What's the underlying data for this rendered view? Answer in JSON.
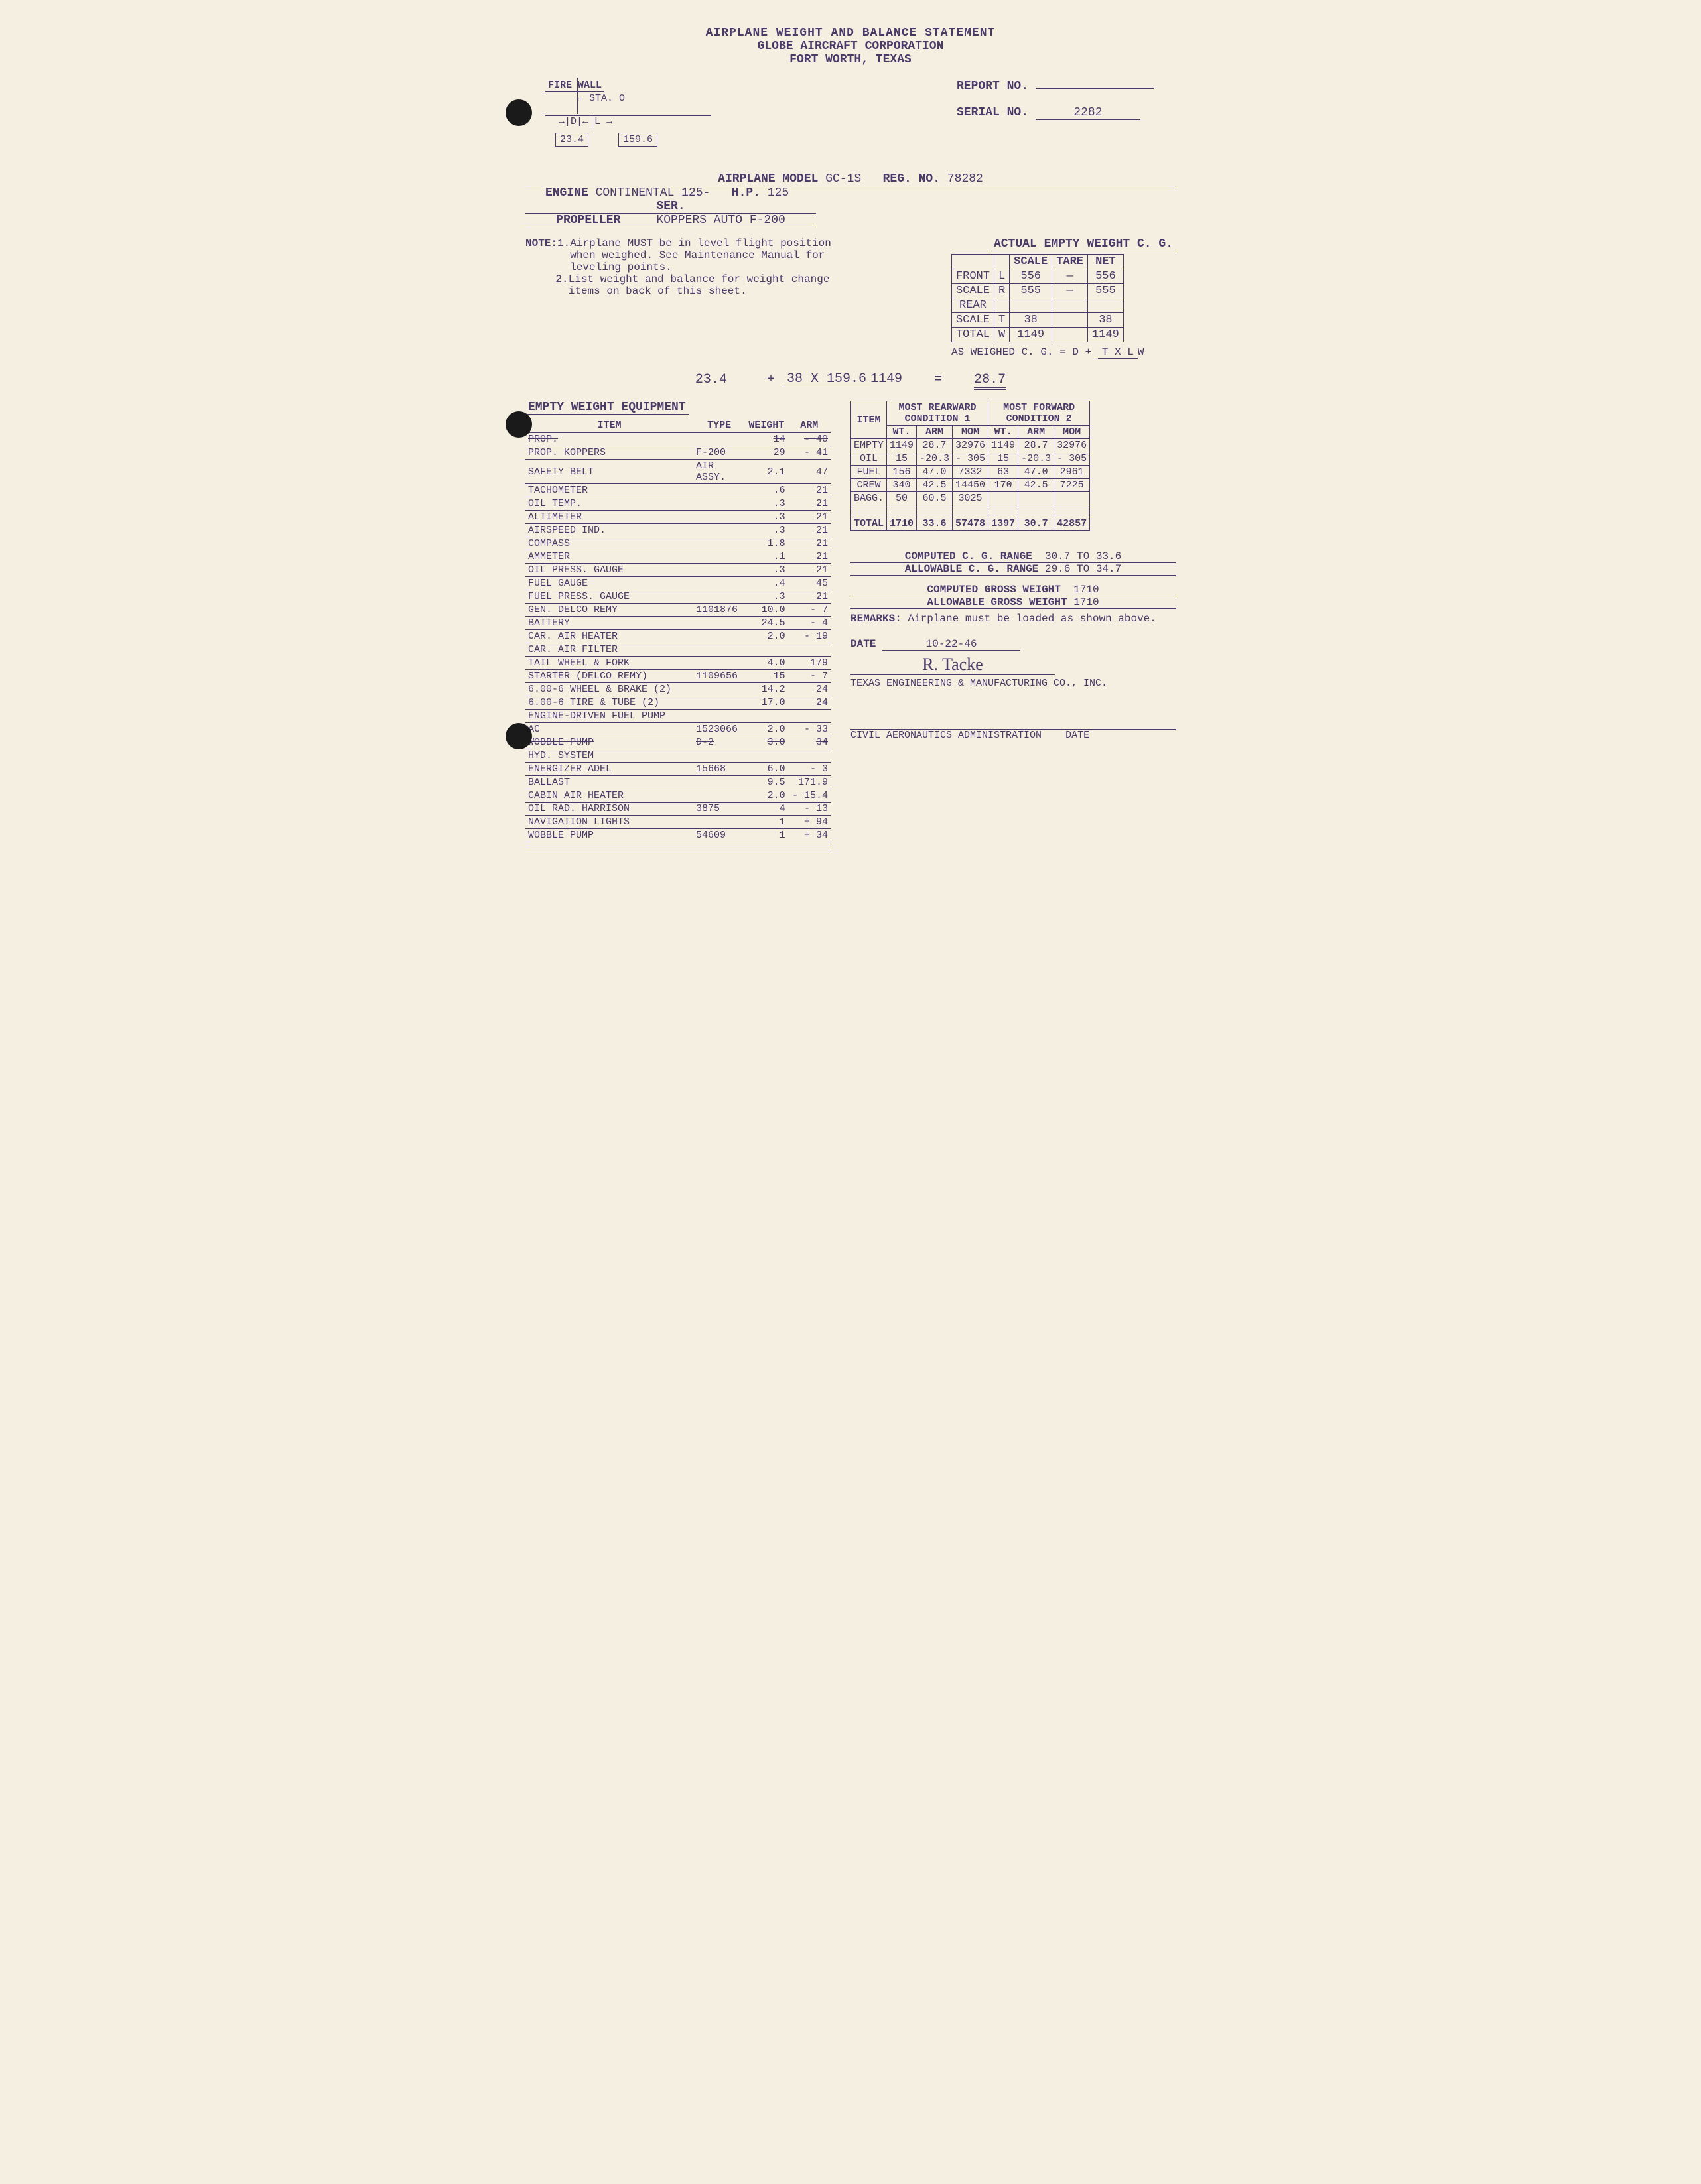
{
  "header": {
    "title": "AIRPLANE WEIGHT AND BALANCE STATEMENT",
    "company": "GLOBE AIRCRAFT CORPORATION",
    "location": "FORT WORTH, TEXAS"
  },
  "topright": {
    "report_lbl": "Report No.",
    "report_val": "",
    "serial_lbl": "Serial No.",
    "serial_val": "2282"
  },
  "diagram": {
    "firewall": "Fire Wall",
    "sta": "STA. O",
    "d": "D",
    "l": "L",
    "d_val": "23.4",
    "l_val": "159.6"
  },
  "specs": {
    "model_lbl": "Airplane Model",
    "model": "GC-1S",
    "reg_lbl": "Reg. No.",
    "reg": "78282",
    "engine_lbl": "Engine",
    "engine": "Continental 125-",
    "hp_lbl": "H.P.",
    "hp": "125",
    "ser_lbl": "Ser.",
    "prop_lbl": "Propeller",
    "prop": "Koppers Auto F-200"
  },
  "notes": {
    "hdr": "NOTE:",
    "n1": "1.",
    "n1t": "Airplane MUST be in level flight position when weighed. See Maintenance Manual for leveling points.",
    "n2": "2.",
    "n2t": "List weight and balance for weight change items on back of this sheet."
  },
  "cg_table": {
    "title": "Actual Empty Weight C. G.",
    "cols": [
      "",
      "",
      "Scale",
      "Tare",
      "Net"
    ],
    "rows": [
      [
        "Front",
        "L",
        "556",
        "—",
        "556"
      ],
      [
        "Scale",
        "R",
        "555",
        "—",
        "555"
      ],
      [
        "Rear",
        "",
        "",
        "",
        ""
      ],
      [
        "Scale",
        "T",
        "38",
        "",
        "38"
      ],
      [
        "Total",
        "W",
        "1149",
        "",
        "1149"
      ]
    ],
    "formula_lbl": "As weighed C. G. = D +",
    "formula_frac_top": "T x L",
    "formula_frac_bot": "W",
    "calc_d": "23.4",
    "calc_plus": "+",
    "calc_top": "38 x 159.6",
    "calc_bot": "1149",
    "calc_eq": "=",
    "calc_res": "28.7"
  },
  "equip": {
    "title": "Empty Weight Equipment",
    "cols": [
      "Item",
      "Type",
      "Weight",
      "Arm"
    ],
    "rows": [
      {
        "item": "Prop.",
        "type": "",
        "wt": "14",
        "arm": "- 40",
        "strike": true
      },
      {
        "item": "Prop. Koppers",
        "type": "F-200",
        "wt": "29",
        "arm": "- 41"
      },
      {
        "item": "Safety Belt",
        "type": "Air Assy.",
        "wt": "2.1",
        "arm": "47"
      },
      {
        "item": "Tachometer",
        "type": "",
        "wt": ".6",
        "arm": "21"
      },
      {
        "item": "Oil Temp.",
        "type": "",
        "wt": ".3",
        "arm": "21"
      },
      {
        "item": "Altimeter",
        "type": "",
        "wt": ".3",
        "arm": "21"
      },
      {
        "item": "Airspeed Ind.",
        "type": "",
        "wt": ".3",
        "arm": "21"
      },
      {
        "item": "Compass",
        "type": "",
        "wt": "1.8",
        "arm": "21"
      },
      {
        "item": "Ammeter",
        "type": "",
        "wt": ".1",
        "arm": "21"
      },
      {
        "item": "Oil Press. Gauge",
        "type": "",
        "wt": ".3",
        "arm": "21"
      },
      {
        "item": "Fuel Gauge",
        "type": "",
        "wt": ".4",
        "arm": "45"
      },
      {
        "item": "Fuel Press. Gauge",
        "type": "",
        "wt": ".3",
        "arm": "21"
      },
      {
        "item": "Gen. Delco Remy",
        "type": "1101876",
        "wt": "10.0",
        "arm": "- 7"
      },
      {
        "item": "Battery",
        "type": "",
        "wt": "24.5",
        "arm": "- 4"
      },
      {
        "item": "Car. Air Heater",
        "type": "",
        "wt": "2.0",
        "arm": "- 19"
      },
      {
        "item": "Car. Air Filter",
        "type": "",
        "wt": "",
        "arm": ""
      },
      {
        "item": "Tail Wheel & Fork",
        "type": "",
        "wt": "4.0",
        "arm": "179"
      },
      {
        "item": "Starter (Delco Remy)",
        "type": "1109656",
        "wt": "15",
        "arm": "- 7"
      },
      {
        "item": "6.00-6 Wheel & Brake (2)",
        "type": "",
        "wt": "14.2",
        "arm": "24"
      },
      {
        "item": "6.00-6 Tire & Tube (2)",
        "type": "",
        "wt": "17.0",
        "arm": "24"
      },
      {
        "item": "Engine-Driven Fuel Pump",
        "type": "",
        "wt": "",
        "arm": ""
      },
      {
        "item": "AC",
        "type": "1523066",
        "wt": "2.0",
        "arm": "- 33"
      },
      {
        "item": "Wobble Pump",
        "type": "D-2",
        "wt": "3.0",
        "arm": "34",
        "strike": true
      },
      {
        "item": "Hyd. System",
        "type": "",
        "wt": "",
        "arm": ""
      },
      {
        "item": "Energizer Adel",
        "type": "15668",
        "wt": "6.0",
        "arm": "- 3"
      },
      {
        "item": "Ballast",
        "type": "",
        "wt": "9.5",
        "arm": "171.9"
      },
      {
        "item": "Cabin Air Heater",
        "type": "",
        "wt": "2.0",
        "arm": "- 15.4"
      },
      {
        "item": "Oil Rad. Harrison",
        "type": "3875",
        "wt": "4",
        "arm": "- 13"
      },
      {
        "item": "Navigation Lights",
        "type": "",
        "wt": "1",
        "arm": "+ 94"
      },
      {
        "item": "Wobble Pump",
        "type": "54609",
        "wt": "1",
        "arm": "+ 34"
      },
      {
        "item": "",
        "type": "",
        "wt": "",
        "arm": ""
      },
      {
        "item": "",
        "type": "",
        "wt": "",
        "arm": ""
      },
      {
        "item": "",
        "type": "",
        "wt": "",
        "arm": ""
      },
      {
        "item": "",
        "type": "",
        "wt": "",
        "arm": ""
      },
      {
        "item": "",
        "type": "",
        "wt": "",
        "arm": ""
      }
    ]
  },
  "conditions": {
    "c1_title": "Most Rearward",
    "c1_sub": "Condition 1",
    "c2_title": "Most Forward",
    "c2_sub": "Condition 2",
    "cols": [
      "Item",
      "Wt.",
      "Arm",
      "Mom",
      "Wt.",
      "Arm",
      "Mom"
    ],
    "rows": [
      [
        "Empty",
        "1149",
        "28.7",
        "32976",
        "1149",
        "28.7",
        "32976"
      ],
      [
        "Oil",
        "15",
        "-20.3",
        "- 305",
        "15",
        "-20.3",
        "- 305"
      ],
      [
        "Fuel",
        "156",
        "47.0",
        "7332",
        "63",
        "47.0",
        "2961"
      ],
      [
        "Crew",
        "340",
        "42.5",
        "14450",
        "170",
        "42.5",
        "7225"
      ],
      [
        "Bagg.",
        "50",
        "60.5",
        "3025",
        "",
        "",
        ""
      ],
      [
        "",
        "",
        "",
        "",
        "",
        "",
        ""
      ],
      [
        "",
        "",
        "",
        "",
        "",
        "",
        ""
      ],
      [
        "",
        "",
        "",
        "",
        "",
        "",
        ""
      ],
      [
        "",
        "",
        "",
        "",
        "",
        "",
        ""
      ],
      [
        "",
        "",
        "",
        "",
        "",
        "",
        ""
      ],
      [
        "",
        "",
        "",
        "",
        "",
        "",
        ""
      ]
    ],
    "total": [
      "Total",
      "1710",
      "33.6",
      "57478",
      "1397",
      "30.7",
      "42857"
    ]
  },
  "summary": {
    "cg_range_lbl": "Computed C. G. Range",
    "cg_range": "30.7 to 33.6",
    "cg_allow_lbl": "Allowable C. G. Range",
    "cg_allow": "29.6 to 34.7",
    "gw_lbl": "Computed Gross Weight",
    "gw": "1710",
    "gw_allow_lbl": "Allowable Gross Weight",
    "gw_allow": "1710",
    "remarks_lbl": "Remarks:",
    "remarks": "Airplane must be loaded as shown above.",
    "date_lbl": "Date",
    "date": "10-22-46",
    "sig": "R. Tacke",
    "co": "Texas Engineering & Manufacturing Co., Inc.",
    "caa": "Civil Aeronautics Administration",
    "caa_date": "Date"
  }
}
